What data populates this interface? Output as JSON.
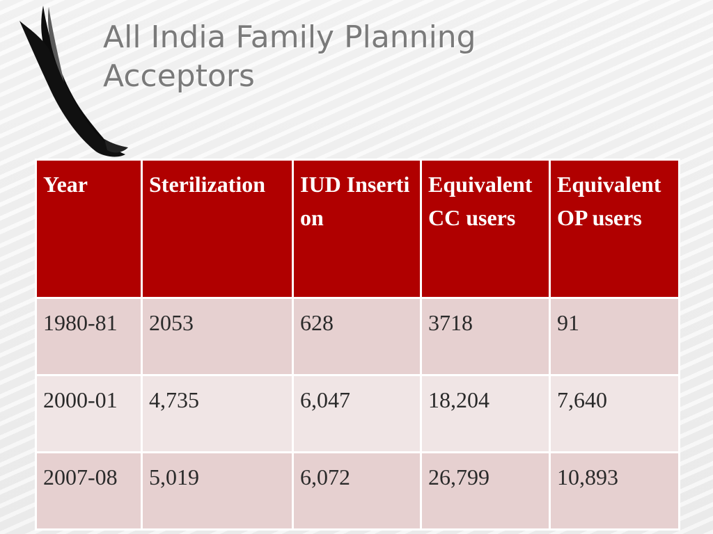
{
  "slide": {
    "title": "All India Family Planning Acceptors"
  },
  "table": {
    "headers": [
      "Year",
      "Sterilization",
      "IUD Insertion",
      "Equivalent CC users",
      "Equivalent OP users"
    ],
    "rows": [
      [
        "1980-81",
        "2053",
        "628",
        "3718",
        "91"
      ],
      [
        "2000-01",
        "4,735",
        "6,047",
        "18,204",
        "7,640"
      ],
      [
        "2007-08",
        "5,019",
        "6,072",
        "26,799",
        "10,893"
      ]
    ]
  },
  "colors": {
    "header_background": "#b00000",
    "row_odd_background": "#e6d0d0",
    "row_even_background": "#f0e5e5",
    "title_text": "#7a7a7a"
  },
  "decorations": {
    "left_ornament": "black-swirl-ribbon"
  }
}
